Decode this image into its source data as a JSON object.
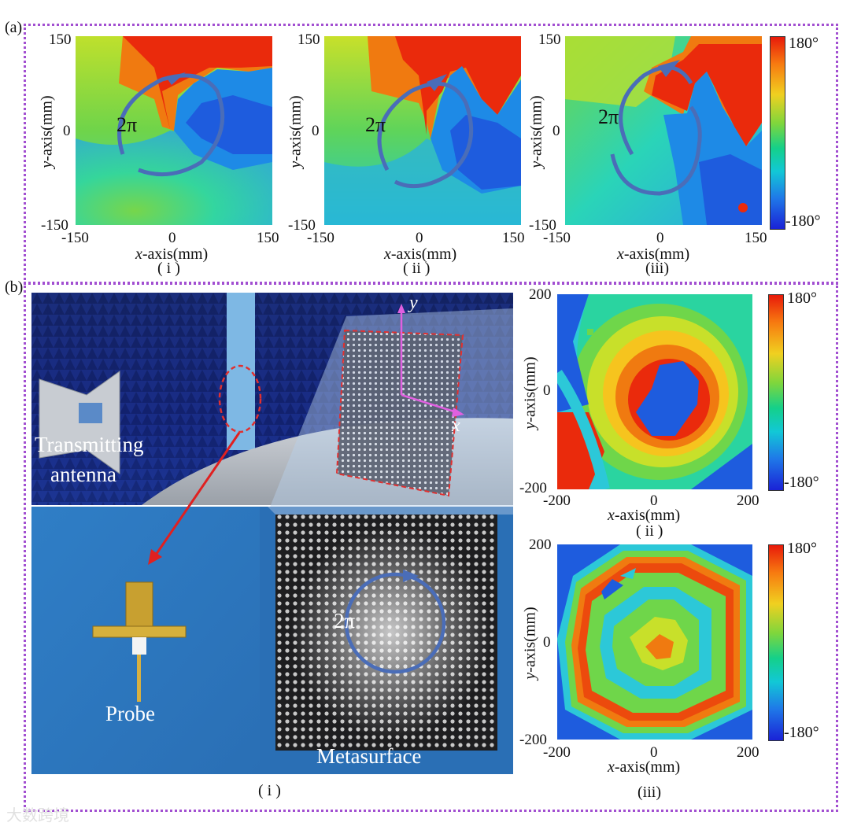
{
  "figure": {
    "panel_a_label": "(a)",
    "panel_b_label": "(b)",
    "colorbar": {
      "max_label": "180°",
      "min_label": "-180°"
    },
    "panel_a": {
      "x_label_var": "x",
      "x_label_unit": "-axis(mm)",
      "y_label_var": "y",
      "y_label_unit": "-axis(mm)",
      "x_ticks": [
        "-150",
        "0",
        "150"
      ],
      "y_ticks": [
        "150",
        "0",
        "-150"
      ],
      "phase_annotation": "2π",
      "sublabels": [
        "( i )",
        "( ii )",
        "(iii)"
      ]
    },
    "panel_b": {
      "x_label_var": "x",
      "x_label_unit": "-axis(mm)",
      "y_label_var": "y",
      "y_label_unit": "-axis(mm)",
      "x_ticks": [
        "-200",
        "0",
        "200"
      ],
      "y_ticks": [
        "200",
        "0",
        "-200"
      ],
      "photo_labels": {
        "transmitting_line1": "Transmitting",
        "transmitting_line2": "antenna",
        "probe": "Probe",
        "metasurface": "Metasurface",
        "phase": "2π",
        "axis_y": "y",
        "axis_x": "x"
      },
      "sublabels": [
        "( i )",
        "( ii )",
        "(iii)"
      ]
    },
    "watermark": "大数跨境"
  }
}
